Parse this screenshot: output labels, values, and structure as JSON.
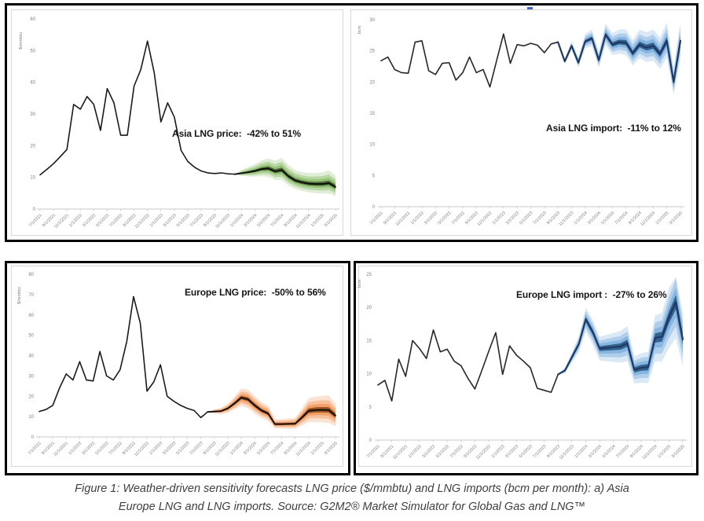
{
  "page": {
    "caption_line1": "Figure 1: Weather-driven sensitivity forecasts LNG price ($/mmbtu) and LNG imports (bcm per month): a) Asia",
    "caption_line2": "Europe LNG and LNG imports. Source: G2M2® Market Simulator for Global Gas and LNG™",
    "artifact_dash_color": "#3a66c9"
  },
  "x_months": [
    "7/1/2021",
    "8/1/2021",
    "9/1/2021",
    "10/1/2021",
    "11/1/2021",
    "12/1/2021",
    "1/1/2022",
    "2/1/2022",
    "3/1/2022",
    "4/1/2022",
    "5/1/2022",
    "6/1/2022",
    "7/1/2022",
    "8/1/2022",
    "9/1/2022",
    "10/1/2022",
    "11/1/2022",
    "12/1/2022",
    "1/1/2023",
    "2/1/2023",
    "3/1/2023",
    "4/1/2023",
    "5/1/2023",
    "6/1/2023",
    "7/1/2023",
    "8/1/2023",
    "9/1/2023",
    "10/1/2023",
    "11/1/2023",
    "12/1/2023",
    "1/1/2024",
    "2/1/2024",
    "3/1/2024",
    "4/1/2024",
    "5/1/2024",
    "6/1/2024",
    "7/1/2024",
    "8/1/2024",
    "9/1/2024",
    "10/1/2024",
    "11/1/2024",
    "12/1/2024",
    "1/1/2025",
    "2/1/2025",
    "3/1/2025"
  ],
  "x_tick_every": 2,
  "chart_data": [
    {
      "id": "asia-lng-price",
      "type": "line",
      "annotation": "Asia LNG price:  -42% to 51%",
      "y_axis_title": "$/mmbtu",
      "ylim": [
        0,
        60
      ],
      "y_ticks": [
        0,
        10,
        20,
        30,
        40,
        50,
        60
      ],
      "grid": false,
      "legend": "none",
      "series": [
        {
          "name": "Asia LNG price",
          "values": [
            10.8,
            12.5,
            14.3,
            16.5,
            18.8,
            33,
            31.5,
            35.5,
            33,
            24.8,
            38,
            33.5,
            23.3,
            23.3,
            38.8,
            44,
            53,
            43,
            27.5,
            33.5,
            29,
            18.5,
            15,
            13.2,
            12,
            11.4,
            11.2,
            11.4,
            11.1,
            11,
            11.3,
            11.6,
            12,
            12.6,
            12.8,
            11.9,
            12.3,
            10.3,
            9,
            8.4,
            8,
            7.9,
            7.9,
            8.2,
            7
          ]
        }
      ],
      "forecast": {
        "start_index": 29,
        "start_month": "12/1/2023",
        "low_pct": -42,
        "high_pct": 51,
        "band_color": "#70ad47",
        "band_core_color": "#375623",
        "line_color": "#1a1a1a",
        "forecast_line_color": "#0d0d0d",
        "forecast_line_width": 1.9
      }
    },
    {
      "id": "asia-lng-import",
      "type": "line",
      "annotation": "Asia LNG import:  -11% to 12%",
      "y_axis_title": "bcm",
      "ylim": [
        0,
        30
      ],
      "y_ticks": [
        0,
        5,
        10,
        15,
        20,
        25,
        30
      ],
      "grid": false,
      "legend": "none",
      "series": [
        {
          "name": "Asia LNG import",
          "values": [
            23.4,
            24,
            22,
            21.5,
            21.4,
            26.4,
            26.6,
            21.8,
            21.2,
            23,
            23.1,
            20.3,
            21.5,
            24,
            21.5,
            22,
            19.2,
            23.5,
            27.7,
            23,
            26,
            25.8,
            26.2,
            25.9,
            24.7,
            26.1,
            26.4,
            23.3,
            25.8,
            23.1,
            26.5,
            27,
            23.5,
            27.6,
            26,
            26.4,
            26.3,
            24.6,
            26,
            25.5,
            25.8,
            24.5,
            26.6,
            20,
            26.6
          ]
        }
      ],
      "forecast": {
        "start_index": 26,
        "start_month": "9/1/2023",
        "low_pct": -11,
        "high_pct": 12,
        "band_color": "#5b9bd5",
        "band_core_color": "#1f4e79",
        "line_color": "#262626",
        "forecast_line_color": "#1f3864",
        "forecast_line_width": 2.2
      }
    },
    {
      "id": "europe-lng-price",
      "type": "line",
      "annotation": "Europe LNG price:  -50% to 56%",
      "y_axis_title": "$/mmbtu",
      "ylim": [
        0,
        80
      ],
      "y_ticks": [
        0,
        10,
        20,
        30,
        40,
        50,
        60,
        70,
        80
      ],
      "grid": false,
      "legend": "none",
      "series": [
        {
          "name": "Europe LNG price",
          "values": [
            12.5,
            13.5,
            15.5,
            24,
            31,
            28,
            37,
            28,
            27.5,
            42,
            30,
            28,
            33,
            47,
            69,
            56,
            22.5,
            27,
            35.5,
            20,
            17.5,
            15.5,
            14,
            13,
            9.5,
            12.3,
            12.5,
            12.7,
            14,
            16.5,
            19.3,
            18.5,
            15.5,
            13,
            11.5,
            6.3,
            6.3,
            6.4,
            6.5,
            9.5,
            12.8,
            13.2,
            13.3,
            13.2,
            10.5
          ]
        }
      ],
      "forecast": {
        "start_index": 25,
        "start_month": "8/1/2023",
        "low_pct": -50,
        "high_pct": 56,
        "band_color": "#ed7d31",
        "band_core_color": "#843c0c",
        "line_color": "#1a1a1a",
        "forecast_line_color": "#0d0d0d",
        "forecast_line_width": 1.9
      }
    },
    {
      "id": "europe-lng-import",
      "type": "line",
      "annotation": "Europe LNG import :  -27% to 26%",
      "y_axis_title": "bcm",
      "ylim": [
        0,
        25
      ],
      "y_ticks": [
        0,
        5,
        10,
        15,
        20,
        25
      ],
      "grid": false,
      "legend": "none",
      "series": [
        {
          "name": "Europe LNG import",
          "values": [
            8.3,
            9,
            5.9,
            12.2,
            9.6,
            15,
            13.8,
            12.3,
            16.6,
            13.3,
            13.7,
            11.9,
            11.2,
            9.3,
            7.7,
            10.5,
            13.4,
            16.2,
            9.9,
            14.2,
            12.8,
            11.9,
            10.9,
            7.8,
            7.5,
            7.2,
            9.9,
            10.5,
            12.5,
            14.5,
            18.2,
            16.3,
            13.8,
            13.9,
            14,
            14.1,
            14.6,
            10.6,
            10.9,
            11,
            15.4,
            15.6,
            18.5,
            20.8,
            15.2
          ]
        }
      ],
      "forecast": {
        "start_index": 26,
        "start_month": "9/1/2023",
        "low_pct": -27,
        "high_pct": 26,
        "band_color": "#5b9bd5",
        "band_core_color": "#1f4e79",
        "line_color": "#262626",
        "forecast_line_color": "#1f3864",
        "forecast_line_width": 2.2
      }
    }
  ]
}
